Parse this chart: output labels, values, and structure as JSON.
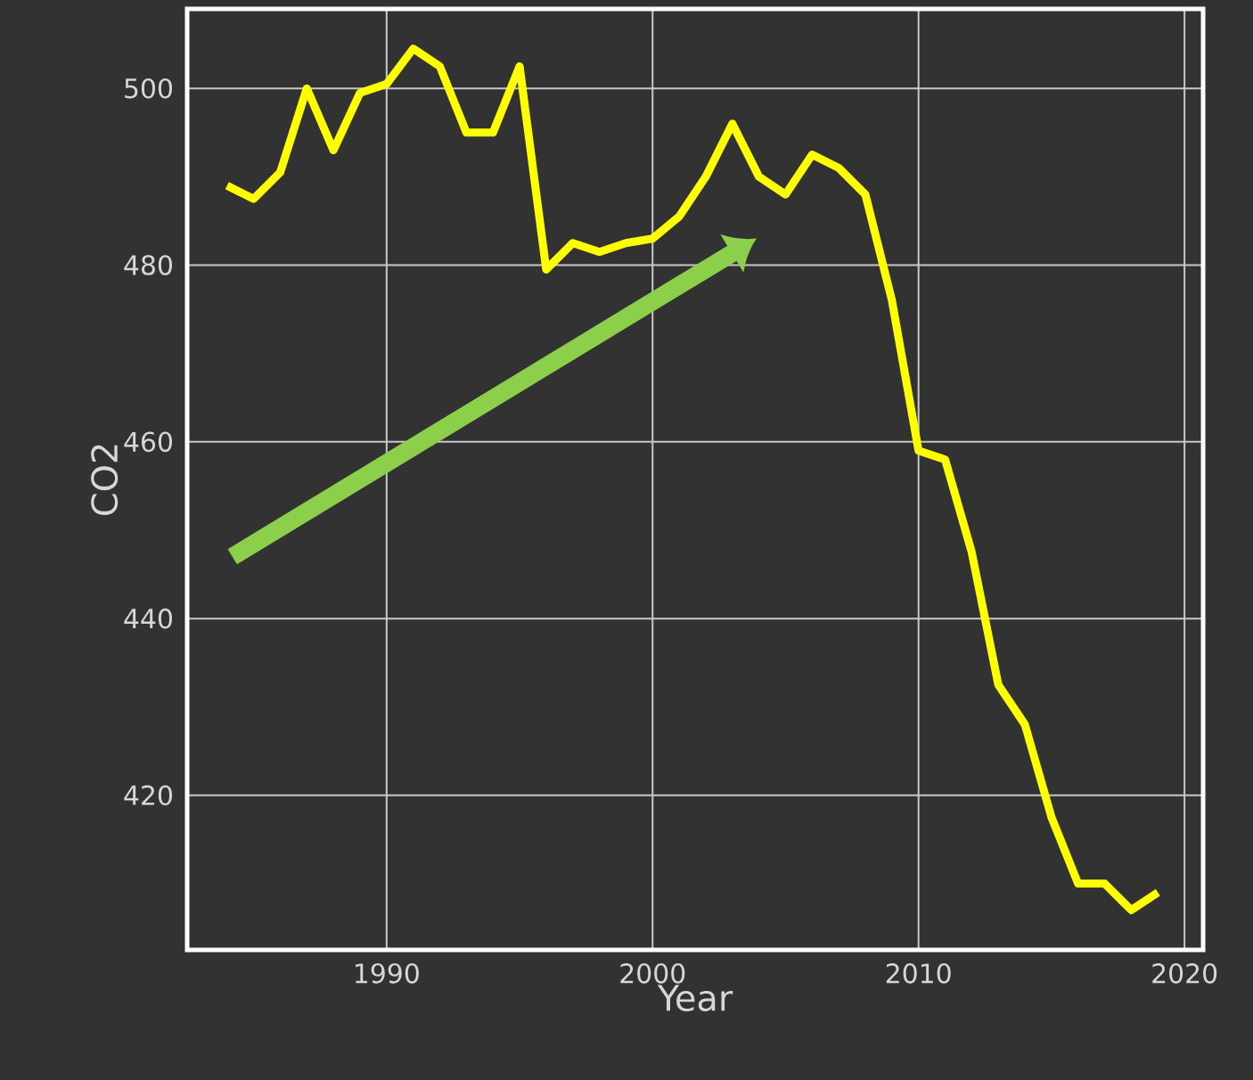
{
  "chart_data": {
    "type": "line",
    "xlabel": "Year",
    "ylabel": "CO2",
    "x": [
      1984,
      1985,
      1986,
      1987,
      1988,
      1989,
      1990,
      1991,
      1992,
      1993,
      1994,
      1995,
      1996,
      1997,
      1998,
      1999,
      2000,
      2001,
      2002,
      2003,
      2004,
      2005,
      2006,
      2007,
      2008,
      2009,
      2010,
      2011,
      2012,
      2013,
      2014,
      2015,
      2016,
      2017,
      2018,
      2019
    ],
    "series": [
      {
        "color": "#ffff00",
        "values": [
          489,
          487.5,
          490.5,
          500,
          493,
          499.5,
          500.5,
          504.5,
          502.5,
          495,
          495,
          502.5,
          479.5,
          482.5,
          481.5,
          482.5,
          483,
          485.5,
          490,
          496,
          490,
          488,
          492.5,
          491,
          488,
          476,
          459,
          458,
          447.5,
          432.5,
          428,
          417.5,
          410,
          410,
          407,
          409
        ]
      }
    ],
    "xlim": [
      1982.5,
      2020.7
    ],
    "ylim": [
      402.5,
      509
    ],
    "xticks": [
      1990,
      2000,
      2010,
      2020
    ],
    "yticks": [
      420,
      440,
      460,
      480,
      500
    ],
    "grid": true,
    "marker": "none",
    "line_style": "solid"
  }
}
